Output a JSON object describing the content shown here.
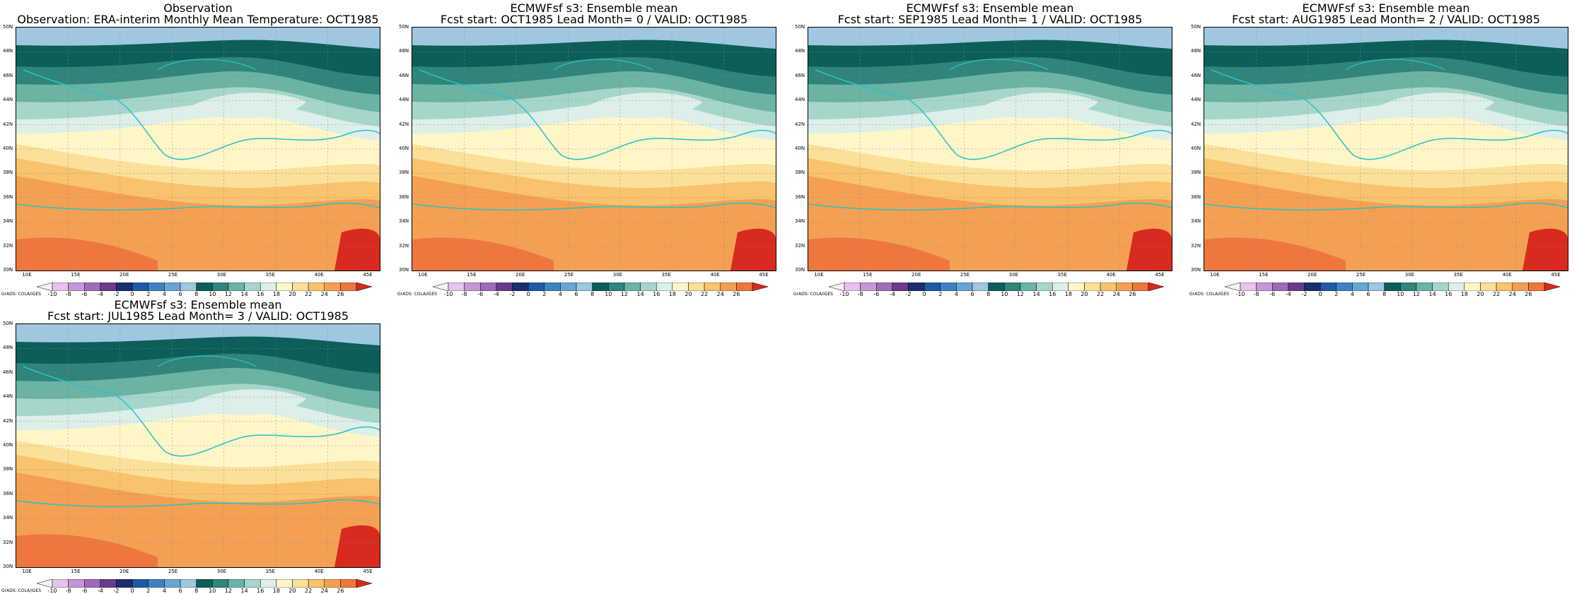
{
  "credit": "GrADS: COLA/IGES",
  "colorbar": {
    "labels": [
      "-10",
      "-8",
      "-6",
      "-4",
      "-2",
      "0",
      "2",
      "4",
      "6",
      "8",
      "10",
      "12",
      "14",
      "16",
      "18",
      "20",
      "22",
      "24",
      "26"
    ],
    "colors": [
      "#f4f4f4",
      "#e6c3ec",
      "#c796d6",
      "#a06ab8",
      "#6a3a8c",
      "#1a2f6e",
      "#1d5aa6",
      "#3f82c2",
      "#6aa6d4",
      "#9fc7e2",
      "#0b5f58",
      "#2f8579",
      "#6bb3a4",
      "#a6d6cb",
      "#dcefe9",
      "#fff6c8",
      "#fcdf98",
      "#f8c36c",
      "#f4a052",
      "#ee7740",
      "#d92a1f"
    ]
  },
  "x_ticks": [
    "10E",
    "15E",
    "20E",
    "25E",
    "30E",
    "35E",
    "40E",
    "45E"
  ],
  "y_ticks": [
    "50N",
    "48N",
    "46N",
    "44N",
    "42N",
    "40N",
    "38N",
    "36N",
    "34N",
    "32N",
    "30N"
  ],
  "panels": [
    {
      "title1": "Observation",
      "title2": "Observation: ERA-interim Monthly Mean Temperature: OCT1985"
    },
    {
      "title1": "ECMWFsf s3: Ensemble mean",
      "title2": "Fcst start: OCT1985  Lead Month= 0 / VALID: OCT1985"
    },
    {
      "title1": "ECMWFsf s3: Ensemble mean",
      "title2": "Fcst start: SEP1985  Lead Month= 1 / VALID: OCT1985"
    },
    {
      "title1": "ECMWFsf s3: Ensemble mean",
      "title2": "Fcst start: AUG1985  Lead Month= 2 / VALID: OCT1985"
    },
    {
      "title1": "ECMWFsf s3: Ensemble mean",
      "title2": "Fcst start: JUL1985  Lead Month= 3 / VALID: OCT1985"
    }
  ]
}
